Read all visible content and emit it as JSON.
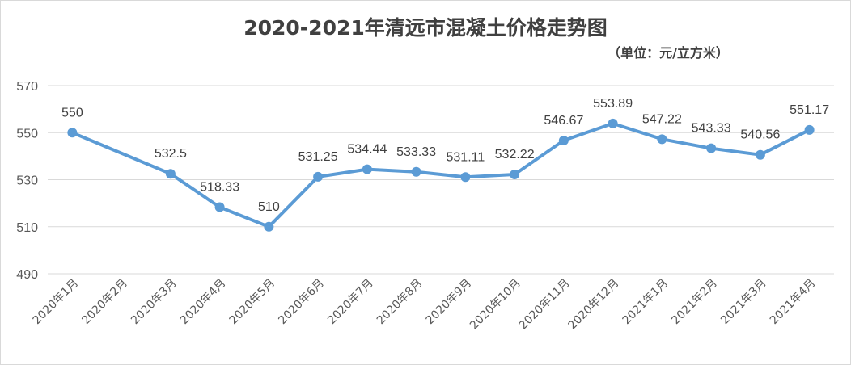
{
  "chart_data": {
    "type": "line",
    "title": "2020-2021年清远市混凝土价格走势图",
    "subtitle": "（单位：元/立方米）",
    "xlabel": "",
    "ylabel": "",
    "ylim": [
      490,
      570
    ],
    "yticks": [
      "570",
      "550",
      "530",
      "510",
      "490"
    ],
    "grid": true,
    "legend": "none",
    "series_color": "#5b9bd5",
    "categories": [
      "2020年1月",
      "2020年2月",
      "2020年3月",
      "2020年4月",
      "2020年5月",
      "2020年6月",
      "2020年7月",
      "2020年8月",
      "2020年9月",
      "2020年10月",
      "2020年11月",
      "2020年12月",
      "2021年1月",
      "2021年2月",
      "2021年3月",
      "2021年4月"
    ],
    "series": [
      {
        "values": [
          550,
          null,
          532.5,
          518.33,
          510,
          531.25,
          534.44,
          533.33,
          531.11,
          532.22,
          546.67,
          553.89,
          547.22,
          543.33,
          540.56,
          551.17
        ],
        "labels": [
          "550",
          "",
          "532.5",
          "518.33",
          "510",
          "531.25",
          "534.44",
          "533.33",
          "531.11",
          "532.22",
          "546.67",
          "553.89",
          "547.22",
          "543.33",
          "540.56",
          "551.17"
        ]
      }
    ]
  }
}
